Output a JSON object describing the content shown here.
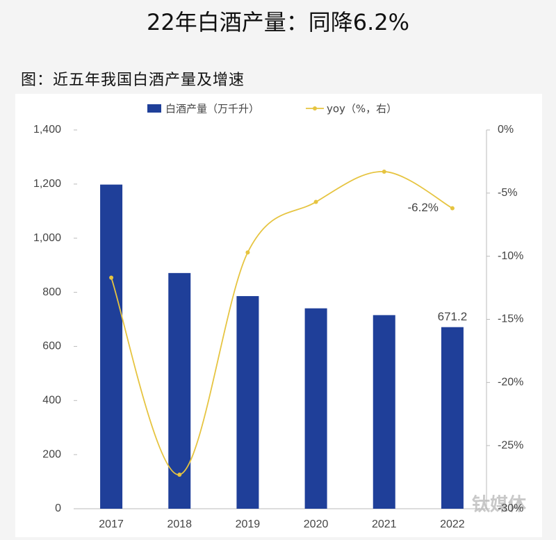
{
  "chart_data": {
    "type": "bar",
    "title": "22年白酒产量：同降6.2%",
    "subtitle": "图：近五年我国白酒产量及增速",
    "watermark": "钛媒体",
    "categories": [
      "2017",
      "2018",
      "2019",
      "2020",
      "2021",
      "2022"
    ],
    "series": [
      {
        "name": "白酒产量（万千升）",
        "type": "bar",
        "color": "#1f3f99",
        "values": [
          1198.1,
          871.2,
          785.9,
          740.7,
          715.6,
          671.2
        ],
        "value_labels": [
          null,
          null,
          null,
          null,
          null,
          "671.2"
        ]
      },
      {
        "name": "yoy（%，右）",
        "type": "line",
        "axis": "y2",
        "color": "#e6c440",
        "values": [
          -11.7,
          -27.3,
          -9.7,
          -5.7,
          -3.3,
          -6.2
        ],
        "value_labels": [
          null,
          null,
          null,
          null,
          null,
          "-6.2%"
        ]
      }
    ],
    "ylim": [
      0,
      1400
    ],
    "yticks": [
      0,
      200,
      400,
      600,
      800,
      {
        "value": 1000,
        "label": "1,000"
      },
      {
        "value": 1200,
        "label": "1,200"
      },
      {
        "value": 1400,
        "label": "1,400"
      }
    ],
    "y2lim": [
      -30,
      0
    ],
    "y2ticks": [
      {
        "value": -30,
        "label": "-30%"
      },
      {
        "value": -25,
        "label": "-25%"
      },
      {
        "value": -20,
        "label": "-20%"
      },
      {
        "value": -15,
        "label": "-15%"
      },
      {
        "value": -10,
        "label": "-10%"
      },
      {
        "value": -5,
        "label": "-5%"
      },
      {
        "value": 0,
        "label": "0%"
      }
    ],
    "legend": "top"
  }
}
